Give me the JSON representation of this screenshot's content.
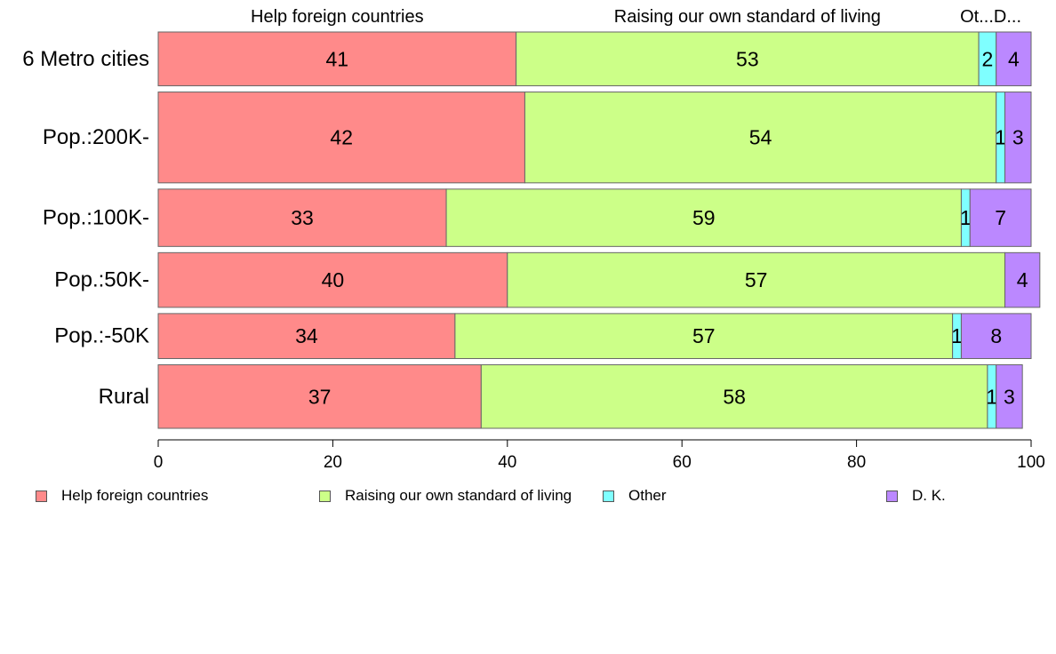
{
  "chart_data": {
    "type": "bar",
    "orientation": "horizontal",
    "stacked": true,
    "categories": [
      "6 Metro cities",
      "Pop.:200K-",
      "Pop.:100K-",
      "Pop.:50K-",
      "Pop.:-50K",
      "Rural"
    ],
    "series": [
      {
        "name": "Help foreign countries",
        "values": [
          41,
          42,
          33,
          40,
          34,
          37
        ],
        "color": "#ff8a8a"
      },
      {
        "name": "Raising our own standard of living",
        "values": [
          53,
          54,
          59,
          57,
          57,
          58
        ],
        "color": "#ccff88"
      },
      {
        "name": "Other",
        "values": [
          2,
          1,
          1,
          0,
          1,
          1
        ],
        "color": "#7fffff"
      },
      {
        "name": "D. K.",
        "values": [
          4,
          3,
          7,
          4,
          8,
          3
        ],
        "color": "#bb88ff"
      }
    ],
    "data_labels": [
      [
        "41",
        "53",
        "2",
        "4"
      ],
      [
        "42",
        "54",
        "1",
        "3"
      ],
      [
        "33",
        "59",
        "1",
        "7"
      ],
      [
        "40",
        "57",
        "",
        "4"
      ],
      [
        "34",
        "57",
        "1",
        "8"
      ],
      [
        "37",
        "58",
        "1",
        "3"
      ]
    ],
    "column_headers": [
      "Help foreign countries",
      "Raising our own standard of living",
      "Ot...",
      "D..."
    ],
    "category_weights": [
      61,
      103,
      65,
      62,
      51,
      72
    ],
    "xlim": [
      0,
      100
    ],
    "xticks": [
      0,
      20,
      40,
      60,
      80,
      100
    ],
    "grid": false,
    "legend_position": "bottom",
    "title": "",
    "xlabel": "",
    "ylabel": ""
  }
}
